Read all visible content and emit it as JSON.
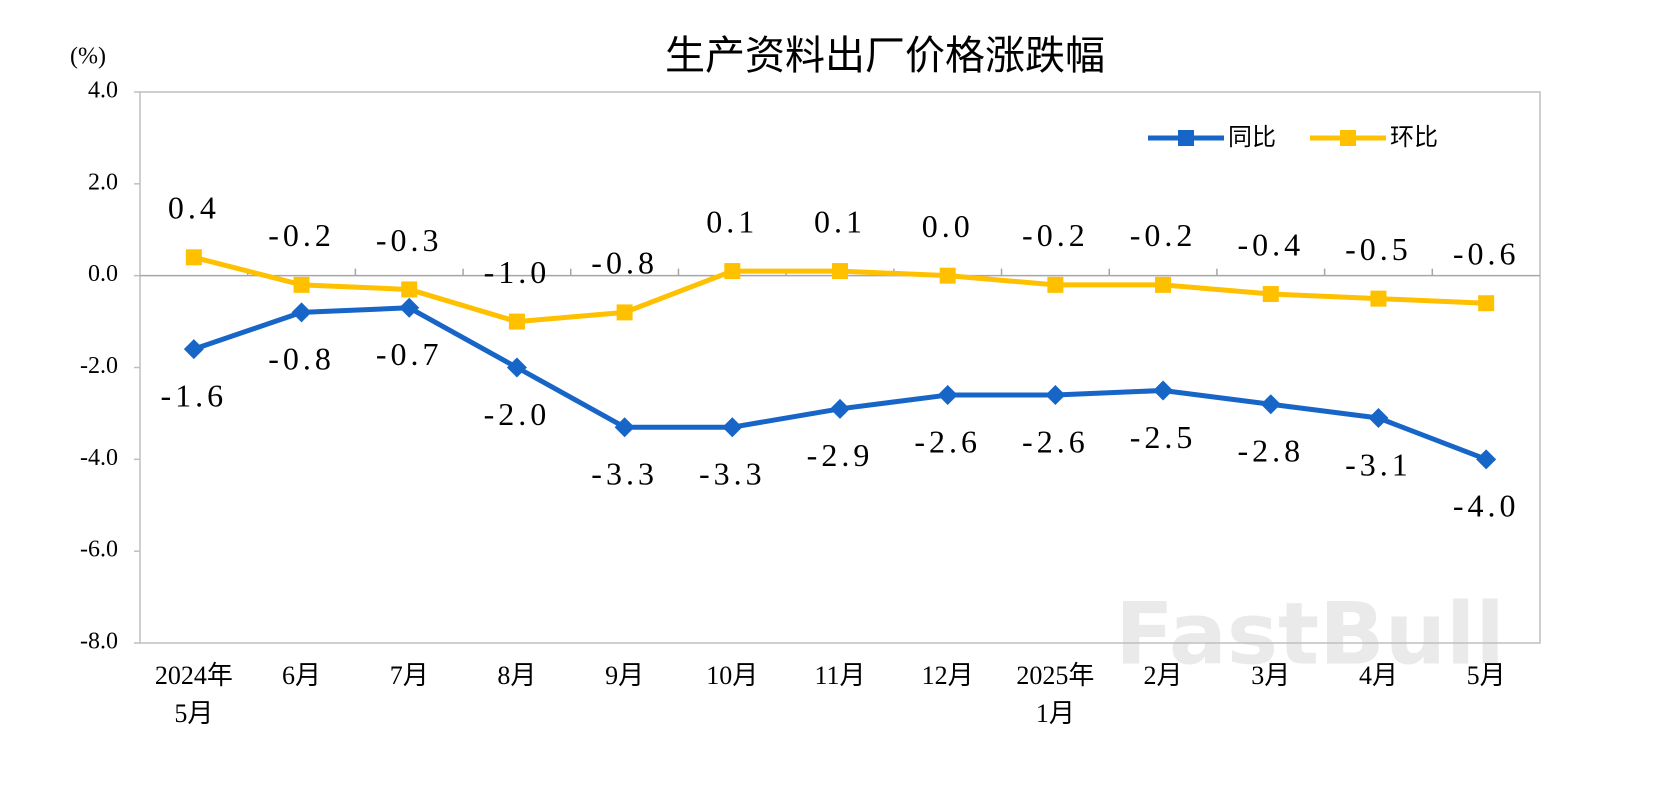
{
  "chart_data": {
    "type": "line",
    "title": "生产资料出厂价格涨跌幅",
    "y_unit": "(%)",
    "watermark": "FastBull",
    "categories": [
      "2024年\n5月",
      "6月",
      "7月",
      "8月",
      "9月",
      "10月",
      "11月",
      "12月",
      "2025年\n1月",
      "2月",
      "3月",
      "4月",
      "5月"
    ],
    "series": [
      {
        "name": "同比",
        "color": "#1766c7",
        "marker": "diamond",
        "values": [
          -1.6,
          -0.8,
          -0.7,
          -2.0,
          -3.3,
          -3.3,
          -2.9,
          -2.6,
          -2.6,
          -2.5,
          -2.8,
          -3.1,
          -4.0
        ],
        "value_labels": [
          "-1.6",
          "-0.8",
          "-0.7",
          "-2.0",
          "-3.3",
          "-3.3",
          "-2.9",
          "-2.6",
          "-2.6",
          "-2.5",
          "-2.8",
          "-3.1",
          "-4.0"
        ]
      },
      {
        "name": "环比",
        "color": "#ffc000",
        "marker": "square",
        "values": [
          0.4,
          -0.2,
          -0.3,
          -1.0,
          -0.8,
          0.1,
          0.1,
          0.0,
          -0.2,
          -0.2,
          -0.4,
          -0.5,
          -0.6
        ],
        "value_labels": [
          "0.4",
          "-0.2",
          "-0.3",
          "-1.0",
          "-0.8",
          "0.1",
          "0.1",
          "0.0",
          "-0.2",
          "-0.2",
          "-0.4",
          "-0.5",
          "-0.6"
        ]
      }
    ],
    "ylim": [
      -8,
      4
    ],
    "yticks": [
      {
        "value": -8,
        "label": "-8.0"
      },
      {
        "value": -6,
        "label": "-6.0"
      },
      {
        "value": -4,
        "label": "-4.0"
      },
      {
        "value": -2,
        "label": "-2.0"
      },
      {
        "value": 0,
        "label": "0.0"
      },
      {
        "value": 2,
        "label": "2.0"
      },
      {
        "value": 4,
        "label": "4.0"
      }
    ],
    "legend": "top-right"
  }
}
